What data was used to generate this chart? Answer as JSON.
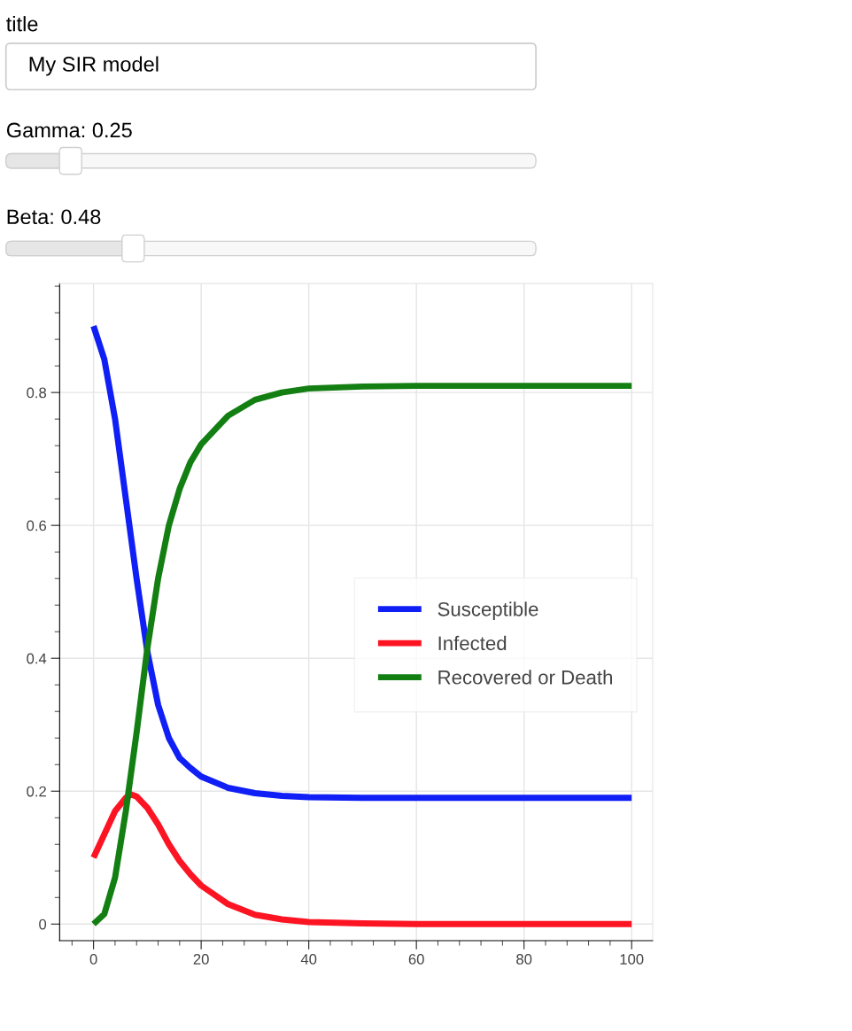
{
  "chart_data": {
    "type": "line",
    "annotations": [
      "title",
      "My SIR model",
      "Gamma: 0.25",
      "Beta: 0.48"
    ],
    "series": [
      {
        "name": "Susceptible",
        "color": "#0f1ff5",
        "x": [
          0,
          2,
          4,
          6,
          8,
          10,
          12,
          14,
          16,
          18,
          20,
          25,
          30,
          35,
          40,
          50,
          60,
          80,
          100
        ],
        "values": [
          0.9,
          0.85,
          0.76,
          0.64,
          0.52,
          0.41,
          0.33,
          0.28,
          0.25,
          0.235,
          0.222,
          0.205,
          0.197,
          0.193,
          0.191,
          0.19,
          0.19,
          0.19,
          0.19
        ]
      },
      {
        "name": "Infected",
        "color": "#fd1423",
        "x": [
          0,
          2,
          4,
          6,
          7,
          8,
          10,
          12,
          14,
          16,
          18,
          20,
          25,
          30,
          35,
          40,
          50,
          60,
          80,
          100
        ],
        "values": [
          0.1,
          0.135,
          0.17,
          0.19,
          0.195,
          0.192,
          0.175,
          0.15,
          0.12,
          0.095,
          0.075,
          0.058,
          0.03,
          0.014,
          0.007,
          0.003,
          0.001,
          0,
          0,
          0
        ]
      },
      {
        "name": "Recovered or Death",
        "color": "#137f13",
        "x": [
          0,
          2,
          4,
          6,
          8,
          10,
          12,
          14,
          16,
          18,
          20,
          25,
          30,
          35,
          40,
          50,
          60,
          80,
          100
        ],
        "values": [
          0,
          0.015,
          0.07,
          0.17,
          0.288,
          0.415,
          0.52,
          0.6,
          0.655,
          0.695,
          0.722,
          0.765,
          0.789,
          0.8,
          0.806,
          0.809,
          0.81,
          0.81,
          0.81
        ]
      }
    ],
    "xlim": [
      -6.3,
      103.9
    ],
    "ylim": [
      -0.025,
      0.964
    ],
    "xticks": [
      0,
      20,
      40,
      60,
      80,
      100
    ],
    "yticks": [
      0,
      0.2,
      0.4,
      0.6,
      0.8
    ],
    "grid": true,
    "legend": "right",
    "line_style": "solid",
    "marker": "none"
  }
}
